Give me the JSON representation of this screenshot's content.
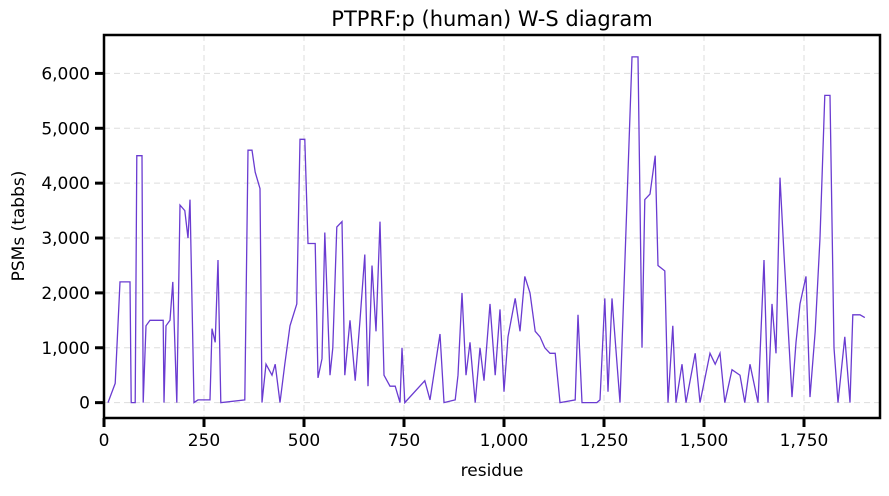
{
  "chart_data": {
    "type": "line",
    "title": "PTPRF:p (human) W-S diagram",
    "x_label": "residue",
    "y_label": "PSMs (tabbs)",
    "x": [
      10,
      28,
      40,
      65,
      68,
      78,
      82,
      95,
      98,
      105,
      115,
      148,
      150,
      155,
      165,
      172,
      182,
      190,
      202,
      210,
      215,
      225,
      235,
      265,
      270,
      278,
      285,
      292,
      352,
      360,
      370,
      378,
      390,
      395,
      405,
      420,
      428,
      440,
      452,
      465,
      482,
      490,
      502,
      510,
      528,
      535,
      545,
      552,
      565,
      572,
      582,
      595,
      602,
      615,
      628,
      640,
      652,
      660,
      670,
      680,
      690,
      700,
      715,
      728,
      740,
      745,
      752,
      802,
      815,
      840,
      850,
      878,
      885,
      895,
      905,
      915,
      928,
      940,
      950,
      965,
      978,
      990,
      1000,
      1010,
      1028,
      1040,
      1052,
      1065,
      1078,
      1090,
      1102,
      1115,
      1128,
      1140,
      1178,
      1185,
      1195,
      1232,
      1240,
      1252,
      1260,
      1270,
      1290,
      1320,
      1335,
      1345,
      1352,
      1365,
      1378,
      1385,
      1402,
      1410,
      1422,
      1430,
      1445,
      1455,
      1478,
      1490,
      1515,
      1528,
      1540,
      1552,
      1570,
      1590,
      1602,
      1615,
      1635,
      1650,
      1660,
      1670,
      1680,
      1690,
      1700,
      1710,
      1720,
      1730,
      1740,
      1755,
      1765,
      1778,
      1790,
      1802,
      1815,
      1825,
      1835,
      1852,
      1865,
      1872,
      1890,
      1902
    ],
    "series": [
      {
        "name": "PSMs",
        "color": "#6a3bd1",
        "values": [
          0,
          350,
          2200,
          2200,
          0,
          0,
          4500,
          4500,
          0,
          1400,
          1500,
          1500,
          0,
          1400,
          1500,
          2200,
          0,
          3600,
          3500,
          3000,
          3700,
          0,
          50,
          50,
          1350,
          1100,
          2600,
          0,
          50,
          4600,
          4600,
          4200,
          3900,
          0,
          700,
          500,
          700,
          0,
          700,
          1400,
          1800,
          4800,
          4800,
          2900,
          2900,
          450,
          800,
          3100,
          500,
          1000,
          3200,
          3300,
          500,
          1500,
          400,
          1500,
          2700,
          300,
          2500,
          1300,
          3300,
          500,
          300,
          300,
          0,
          1000,
          0,
          400,
          50,
          1250,
          0,
          50,
          500,
          2000,
          500,
          1100,
          0,
          1000,
          400,
          1800,
          500,
          1700,
          200,
          1200,
          1900,
          1300,
          2300,
          2000,
          1300,
          1200,
          1000,
          900,
          900,
          0,
          50,
          1600,
          0,
          0,
          50,
          1900,
          200,
          1900,
          0,
          6300,
          6300,
          1000,
          3700,
          3800,
          4500,
          2500,
          2400,
          0,
          1400,
          0,
          700,
          0,
          900,
          0,
          900,
          700,
          900,
          0,
          600,
          500,
          0,
          700,
          0,
          2600,
          0,
          1800,
          900,
          4100,
          2700,
          1400,
          100,
          1100,
          1800,
          2300,
          100,
          1300,
          3000,
          5600,
          5600,
          1000,
          0,
          1200,
          0,
          1600,
          1600,
          1550
        ]
      }
    ],
    "xlim": [
      0,
      1940
    ],
    "ylim": [
      -280,
      6700
    ],
    "xticks": [
      0,
      250,
      500,
      750,
      {
        "value": 1000,
        "label": "1,000"
      },
      {
        "value": 1250,
        "label": "1,250"
      },
      {
        "value": 1500,
        "label": "1,500"
      },
      {
        "value": 1750,
        "label": "1,750"
      }
    ],
    "yticks": [
      0,
      {
        "value": 1000,
        "label": "1,000"
      },
      {
        "value": 2000,
        "label": "2,000"
      },
      {
        "value": 3000,
        "label": "3,000"
      },
      {
        "value": 4000,
        "label": "4,000"
      },
      {
        "value": 5000,
        "label": "5,000"
      },
      {
        "value": 6000,
        "label": "6,000"
      }
    ],
    "grid": true
  }
}
